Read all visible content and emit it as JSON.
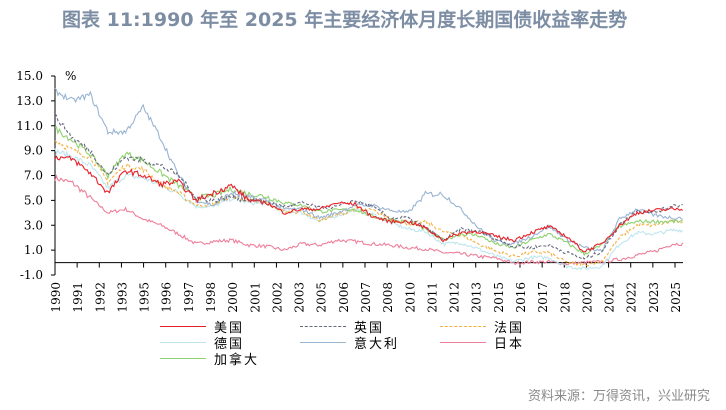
{
  "title": "图表 11:1990 年至 2025 年主要经济体月度长期国债收益率走势",
  "source": "资料来源：万得资讯，兴业研究",
  "chart_data": {
    "type": "line",
    "title": "图表 11:1990 年至 2025 年主要经济体月度长期国债收益率走势",
    "ylabel": "%",
    "xlabel": "",
    "ylim": [
      -1.0,
      15.0
    ],
    "yticks": [
      "15.0",
      "13.0",
      "11.0",
      "9.0",
      "7.0",
      "5.0",
      "3.0",
      "1.0",
      "-1.0"
    ],
    "xticks": [
      "1990",
      "1991",
      "1992",
      "1993",
      "1995",
      "1996",
      "1997",
      "1998",
      "2000",
      "2001",
      "2002",
      "2003",
      "2005",
      "2006",
      "2007",
      "2008",
      "2010",
      "2011",
      "2012",
      "2013",
      "2015",
      "2016",
      "2017",
      "2018",
      "2020",
      "2021",
      "2022",
      "2023",
      "2025"
    ],
    "x": [
      1990,
      1991,
      1992,
      1993,
      1994,
      1995,
      1996,
      1997,
      1998,
      1999,
      2000,
      2001,
      2002,
      2003,
      2004,
      2005,
      2006,
      2007,
      2008,
      2009,
      2010,
      2011,
      2012,
      2013,
      2014,
      2015,
      2016,
      2017,
      2018,
      2019,
      2020,
      2021,
      2022,
      2023,
      2024,
      2025
    ],
    "legend_position": "bottom",
    "series": [
      {
        "name": "美国",
        "color": "#e8202a",
        "dash": "",
        "values": [
          8.5,
          8.3,
          7.2,
          5.6,
          7.4,
          7.0,
          6.3,
          6.5,
          5.0,
          5.6,
          6.2,
          5.0,
          4.8,
          4.0,
          4.3,
          4.3,
          4.8,
          4.7,
          3.7,
          3.3,
          3.3,
          2.8,
          1.8,
          2.4,
          2.5,
          2.1,
          1.8,
          2.4,
          2.9,
          2.1,
          0.9,
          1.5,
          3.0,
          4.0,
          4.2,
          4.3
        ]
      },
      {
        "name": "英国",
        "color": "#666a80",
        "dash": "3,2",
        "values": [
          11.8,
          10.0,
          9.0,
          7.0,
          8.5,
          8.2,
          7.8,
          7.0,
          5.2,
          5.0,
          5.3,
          5.0,
          4.9,
          4.5,
          4.8,
          4.4,
          4.5,
          5.0,
          4.5,
          3.6,
          3.6,
          2.8,
          1.8,
          2.7,
          2.5,
          1.9,
          1.3,
          1.2,
          1.4,
          0.8,
          0.3,
          0.9,
          3.0,
          4.2,
          4.0,
          4.6
        ]
      },
      {
        "name": "法国",
        "color": "#f5b041",
        "dash": "3,2",
        "values": [
          9.8,
          9.0,
          8.5,
          6.5,
          7.8,
          7.5,
          6.3,
          5.6,
          4.6,
          4.7,
          5.4,
          5.0,
          4.8,
          4.1,
          4.1,
          3.4,
          3.8,
          4.3,
          4.2,
          3.6,
          3.1,
          3.3,
          2.5,
          2.2,
          1.5,
          0.9,
          0.5,
          0.8,
          0.8,
          0.0,
          -0.2,
          0.1,
          2.0,
          3.0,
          3.0,
          3.3
        ]
      },
      {
        "name": "德国",
        "color": "#bfe6ee",
        "dash": "",
        "values": [
          9.0,
          8.5,
          7.8,
          6.0,
          7.0,
          6.8,
          6.2,
          5.6,
          4.5,
          4.5,
          5.2,
          4.8,
          4.7,
          4.1,
          4.0,
          3.3,
          3.8,
          4.2,
          3.9,
          3.2,
          2.7,
          2.5,
          1.5,
          1.6,
          1.1,
          0.5,
          0.1,
          0.4,
          0.4,
          -0.3,
          -0.5,
          -0.3,
          1.5,
          2.4,
          2.3,
          2.6
        ]
      },
      {
        "name": "意大利",
        "color": "#9ab4d2",
        "dash": "",
        "values": [
          13.8,
          13.0,
          13.5,
          10.5,
          10.5,
          12.5,
          10.0,
          7.0,
          5.0,
          4.6,
          5.6,
          5.2,
          5.0,
          4.3,
          4.3,
          3.6,
          4.0,
          4.6,
          4.6,
          4.2,
          4.0,
          5.5,
          5.5,
          4.3,
          2.8,
          1.7,
          1.5,
          2.1,
          2.9,
          1.9,
          1.2,
          0.9,
          3.5,
          4.3,
          3.8,
          3.6
        ]
      },
      {
        "name": "日本",
        "color": "#ee7f9a",
        "dash": "",
        "values": [
          6.8,
          6.4,
          5.2,
          4.0,
          4.3,
          3.5,
          3.0,
          2.3,
          1.5,
          1.7,
          1.8,
          1.4,
          1.3,
          1.0,
          1.5,
          1.4,
          1.8,
          1.7,
          1.5,
          1.4,
          1.2,
          1.1,
          0.8,
          0.7,
          0.5,
          0.35,
          -0.05,
          0.05,
          0.05,
          -0.1,
          0.0,
          0.07,
          0.25,
          0.6,
          0.9,
          1.5
        ]
      },
      {
        "name": "加拿大",
        "color": "#8fd16e",
        "dash": "",
        "values": [
          10.8,
          9.8,
          8.7,
          7.0,
          8.8,
          8.2,
          7.2,
          6.2,
          5.2,
          5.4,
          5.9,
          5.5,
          5.3,
          4.8,
          4.6,
          4.1,
          4.2,
          4.3,
          3.7,
          3.4,
          3.3,
          2.7,
          1.8,
          2.3,
          2.2,
          1.5,
          1.2,
          1.8,
          2.3,
          1.6,
          0.7,
          1.4,
          2.9,
          3.3,
          3.3,
          3.3
        ]
      }
    ]
  }
}
